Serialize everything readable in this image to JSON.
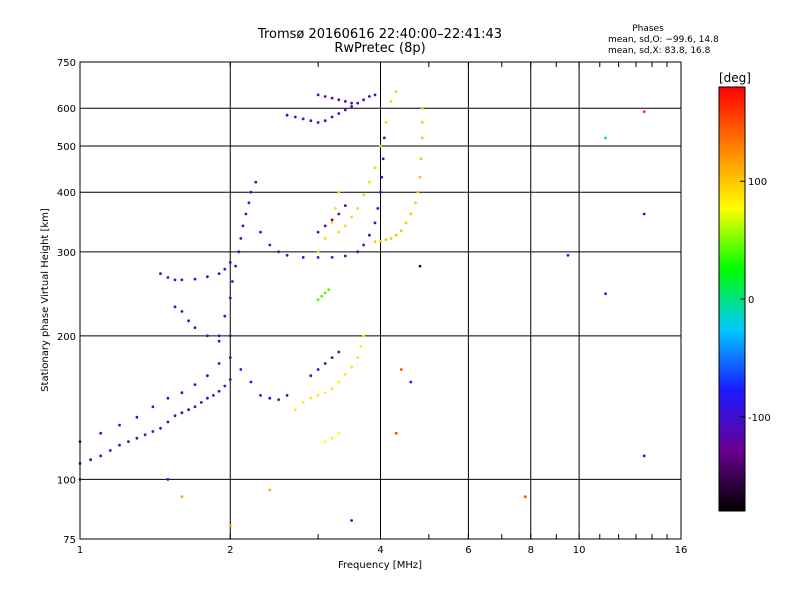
{
  "header": {
    "title_line1": "Tromsø 20160616 22:40:00–22:41:43",
    "title_line2": "RwPretec (8p)",
    "stats_heading": "Phases",
    "stats_o": "mean, sd,O: −99.6, 14.8",
    "stats_x": "mean, sd,X:  83.8, 16.8"
  },
  "chart_data": {
    "type": "scatter",
    "title": "Tromsø 20160616 22:40:00–22:41:43",
    "subtitle": "RwPretec (8p)",
    "xlabel": "Frequency [MHz]",
    "ylabel": "Stationary phase Virtual Height [km]",
    "x_scale": "log",
    "y_scale": "log",
    "xlim": [
      1,
      16
    ],
    "ylim": [
      75,
      750
    ],
    "x_ticks": [
      1,
      2,
      4,
      6,
      8,
      10,
      16
    ],
    "y_ticks": [
      75,
      100,
      200,
      300,
      400,
      500,
      600,
      750
    ],
    "x_gridlines": [
      2,
      4,
      6,
      8,
      10
    ],
    "y_gridlines": [
      100,
      200,
      300,
      400,
      500,
      600
    ],
    "grid": true,
    "colorbar": {
      "label": "[deg]",
      "range": [
        -180,
        180
      ],
      "ticks": [
        100,
        0,
        -100
      ],
      "colors": [
        "#000000",
        "#6a0090",
        "#1a1aff",
        "#00c8ff",
        "#00ff00",
        "#ffff00",
        "#ff8000",
        "#ff0000"
      ]
    },
    "series": [
      {
        "phase": -105,
        "points": [
          [
            1.0,
            108
          ],
          [
            1.05,
            110
          ],
          [
            1.1,
            112
          ],
          [
            1.15,
            115
          ],
          [
            1.2,
            118
          ],
          [
            1.25,
            120
          ],
          [
            1.3,
            122
          ],
          [
            1.35,
            124
          ],
          [
            1.4,
            126
          ],
          [
            1.45,
            128
          ],
          [
            1.5,
            132
          ],
          [
            1.55,
            136
          ],
          [
            1.6,
            138
          ],
          [
            1.65,
            140
          ],
          [
            1.7,
            142
          ],
          [
            1.75,
            145
          ],
          [
            1.8,
            148
          ],
          [
            1.85,
            150
          ],
          [
            1.9,
            153
          ],
          [
            1.95,
            157
          ],
          [
            2.0,
            162
          ]
        ]
      },
      {
        "phase": -100,
        "points": [
          [
            1.0,
            120
          ],
          [
            1.1,
            125
          ],
          [
            1.2,
            130
          ],
          [
            1.3,
            135
          ],
          [
            1.4,
            142
          ],
          [
            1.5,
            148
          ],
          [
            1.6,
            152
          ],
          [
            1.7,
            158
          ],
          [
            1.8,
            165
          ],
          [
            1.9,
            175
          ],
          [
            2.0,
            180
          ],
          [
            2.1,
            170
          ],
          [
            2.2,
            160
          ],
          [
            2.3,
            150
          ],
          [
            2.4,
            148
          ],
          [
            2.5,
            147
          ],
          [
            2.6,
            150
          ]
        ]
      },
      {
        "phase": -95,
        "points": [
          [
            1.45,
            270
          ],
          [
            1.5,
            265
          ],
          [
            1.55,
            262
          ],
          [
            1.6,
            262
          ],
          [
            1.7,
            263
          ],
          [
            1.8,
            266
          ],
          [
            1.9,
            270
          ],
          [
            1.95,
            276
          ],
          [
            2.0,
            285
          ]
        ]
      },
      {
        "phase": -110,
        "points": [
          [
            1.55,
            230
          ],
          [
            1.6,
            225
          ],
          [
            1.65,
            215
          ],
          [
            1.7,
            208
          ],
          [
            1.8,
            200
          ],
          [
            1.9,
            195
          ],
          [
            2.0,
            200
          ]
        ]
      },
      {
        "phase": -98,
        "points": [
          [
            1.9,
            200
          ],
          [
            1.95,
            220
          ],
          [
            2.0,
            240
          ],
          [
            2.02,
            260
          ],
          [
            2.05,
            280
          ],
          [
            2.08,
            300
          ],
          [
            2.1,
            320
          ],
          [
            2.12,
            340
          ],
          [
            2.15,
            360
          ],
          [
            2.18,
            380
          ],
          [
            2.2,
            400
          ],
          [
            2.25,
            420
          ]
        ]
      },
      {
        "phase": -100,
        "points": [
          [
            2.3,
            330
          ],
          [
            2.4,
            310
          ],
          [
            2.5,
            300
          ],
          [
            2.6,
            295
          ],
          [
            2.8,
            292
          ],
          [
            3.0,
            292
          ],
          [
            3.2,
            292
          ],
          [
            3.4,
            294
          ],
          [
            3.6,
            300
          ],
          [
            3.7,
            310
          ],
          [
            3.8,
            325
          ],
          [
            3.9,
            345
          ],
          [
            3.95,
            370
          ],
          [
            4.0,
            400
          ],
          [
            4.02,
            430
          ],
          [
            4.05,
            470
          ],
          [
            4.07,
            520
          ]
        ]
      },
      {
        "phase": 100,
        "points": [
          [
            3.9,
            315
          ],
          [
            4.0,
            316
          ],
          [
            4.1,
            318
          ],
          [
            4.2,
            320
          ],
          [
            4.3,
            325
          ],
          [
            4.4,
            332
          ],
          [
            4.5,
            345
          ],
          [
            4.6,
            360
          ],
          [
            4.7,
            380
          ],
          [
            4.75,
            400
          ],
          [
            4.8,
            430
          ],
          [
            4.82,
            470
          ],
          [
            4.85,
            520
          ],
          [
            4.85,
            560
          ],
          [
            4.85,
            600
          ]
        ]
      },
      {
        "phase": 95,
        "points": [
          [
            3.3,
            330
          ],
          [
            3.4,
            340
          ],
          [
            3.5,
            355
          ],
          [
            3.6,
            370
          ],
          [
            3.7,
            395
          ],
          [
            3.8,
            420
          ],
          [
            3.9,
            450
          ],
          [
            4.0,
            500
          ],
          [
            4.1,
            560
          ],
          [
            4.2,
            620
          ],
          [
            4.3,
            650
          ]
        ]
      },
      {
        "phase": -110,
        "points": [
          [
            3.2,
            575
          ],
          [
            3.3,
            585
          ],
          [
            3.4,
            595
          ],
          [
            3.5,
            605
          ],
          [
            3.6,
            615
          ],
          [
            3.7,
            625
          ],
          [
            3.8,
            635
          ],
          [
            3.9,
            640
          ]
        ]
      },
      {
        "phase": -120,
        "points": [
          [
            3.0,
            640
          ],
          [
            3.1,
            635
          ],
          [
            3.2,
            630
          ],
          [
            3.3,
            625
          ],
          [
            3.4,
            620
          ],
          [
            3.5,
            615
          ]
        ]
      },
      {
        "phase": -95,
        "points": [
          [
            2.6,
            580
          ],
          [
            2.7,
            575
          ],
          [
            2.8,
            570
          ],
          [
            2.9,
            565
          ],
          [
            3.0,
            560
          ],
          [
            3.1,
            565
          ]
        ]
      },
      {
        "phase": 40,
        "points": [
          [
            3.0,
            238
          ],
          [
            3.05,
            242
          ],
          [
            3.1,
            246
          ],
          [
            3.15,
            250
          ]
        ]
      },
      {
        "phase": 85,
        "points": [
          [
            2.7,
            140
          ],
          [
            2.8,
            145
          ],
          [
            2.9,
            148
          ],
          [
            3.0,
            150
          ],
          [
            3.1,
            152
          ],
          [
            3.2,
            155
          ],
          [
            3.3,
            160
          ],
          [
            3.4,
            166
          ],
          [
            3.5,
            172
          ],
          [
            3.6,
            180
          ],
          [
            3.65,
            190
          ],
          [
            3.7,
            200
          ]
        ]
      },
      {
        "phase": -115,
        "points": [
          [
            2.9,
            165
          ],
          [
            3.0,
            170
          ],
          [
            3.1,
            175
          ],
          [
            3.2,
            180
          ],
          [
            3.3,
            185
          ]
        ]
      },
      {
        "phase": 90,
        "points": [
          [
            3.0,
            300
          ],
          [
            3.1,
            320
          ],
          [
            3.2,
            345
          ],
          [
            3.25,
            370
          ],
          [
            3.3,
            400
          ]
        ]
      },
      {
        "phase": -130,
        "points": [
          [
            3.0,
            330
          ],
          [
            3.1,
            340
          ],
          [
            3.2,
            350
          ],
          [
            3.3,
            360
          ],
          [
            3.4,
            375
          ]
        ]
      },
      {
        "phase": 80,
        "points": [
          [
            3.1,
            120
          ],
          [
            3.2,
            122
          ],
          [
            3.3,
            125
          ]
        ]
      },
      {
        "phase": 150,
        "points": [
          [
            4.3,
            125
          ],
          [
            4.4,
            170
          ],
          [
            7.8,
            92
          ]
        ]
      },
      {
        "phase": -100,
        "points": [
          [
            3.5,
            82
          ],
          [
            1.5,
            100
          ],
          [
            1.0,
            100
          ],
          [
            4.6,
            160
          ]
        ]
      },
      {
        "phase": -90,
        "points": [
          [
            9.5,
            295
          ],
          [
            11.3,
            245
          ],
          [
            13.5,
            360
          ],
          [
            13.5,
            112
          ]
        ]
      },
      {
        "phase": 160,
        "points": [
          [
            13.5,
            590
          ]
        ]
      },
      {
        "phase": -20,
        "points": [
          [
            11.3,
            520
          ]
        ]
      },
      {
        "phase": 110,
        "points": [
          [
            2.0,
            80
          ],
          [
            1.6,
            92
          ],
          [
            2.4,
            95
          ]
        ]
      },
      {
        "phase": -150,
        "points": [
          [
            4.8,
            280
          ]
        ]
      }
    ]
  }
}
